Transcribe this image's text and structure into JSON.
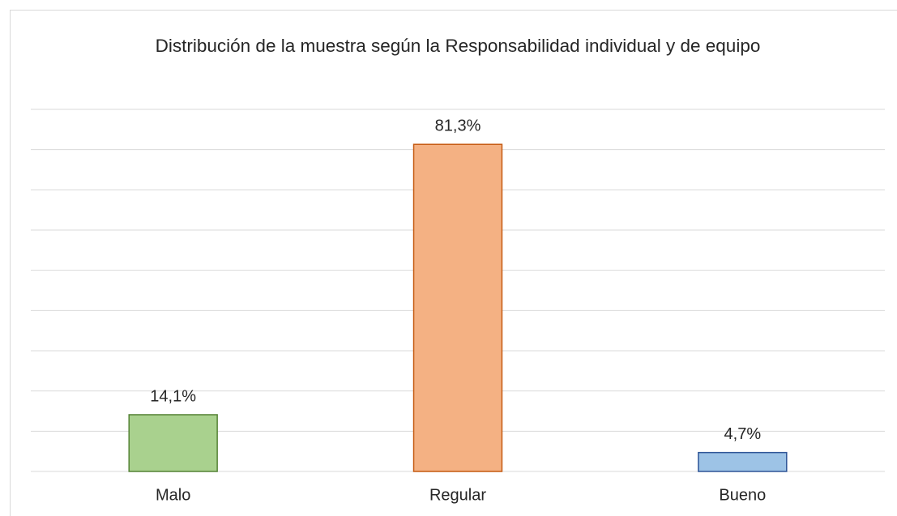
{
  "chart_data": {
    "type": "bar",
    "title": "Distribución de la muestra según la Responsabilidad individual y de equipo",
    "categories": [
      "Malo",
      "Regular",
      "Bueno"
    ],
    "values": [
      14.1,
      81.3,
      4.7
    ],
    "value_labels": [
      "14,1%",
      "81,3%",
      "4,7%"
    ],
    "colors": [
      "#a9d18e",
      "#f4b183",
      "#9dc3e6"
    ],
    "edge_colors": [
      "#548235",
      "#c55a11",
      "#2f5597"
    ],
    "ylim": [
      0,
      90
    ],
    "yticks": [
      0,
      10,
      20,
      30,
      40,
      50,
      60,
      70,
      80,
      90
    ],
    "grid": true
  }
}
